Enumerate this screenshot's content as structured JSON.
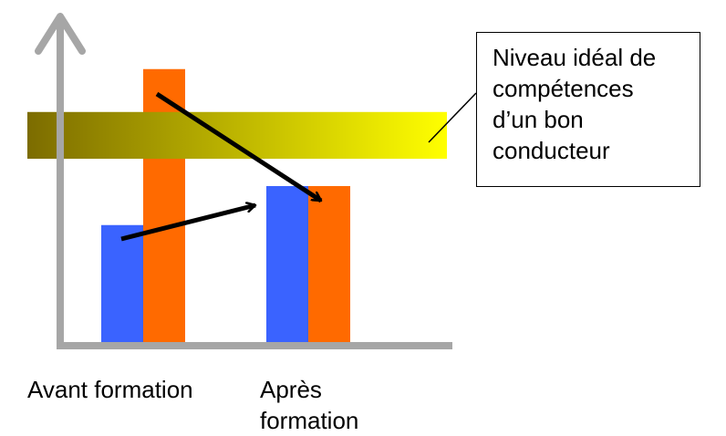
{
  "colors": {
    "series_blue": "#3a63ff",
    "series_orange": "#ff6a00",
    "axis": "#a6a6a6",
    "band_dark": "#7c6c00",
    "band_light": "#ffff00",
    "arrow": "#000000"
  },
  "chart_data": {
    "type": "bar",
    "categories": [
      "Avant formation",
      "Après formation"
    ],
    "series": [
      {
        "values": [
          3,
          4
        ]
      },
      {
        "values": [
          7,
          4
        ]
      }
    ],
    "ideal_band": {
      "from": 4.7,
      "to": 5.9
    },
    "ylim": [
      0,
      8
    ],
    "arrows": [
      {
        "from": [
          0,
          3
        ],
        "to": [
          1,
          4
        ]
      },
      {
        "from": [
          0,
          7
        ],
        "to": [
          1,
          4
        ]
      }
    ]
  },
  "callout": {
    "lines": [
      "Niveau idéal de",
      "compétences",
      "d’un bon",
      "conducteur"
    ]
  },
  "xlabels": {
    "before": [
      "Avant formation"
    ],
    "after": [
      "Après",
      "formation"
    ]
  }
}
